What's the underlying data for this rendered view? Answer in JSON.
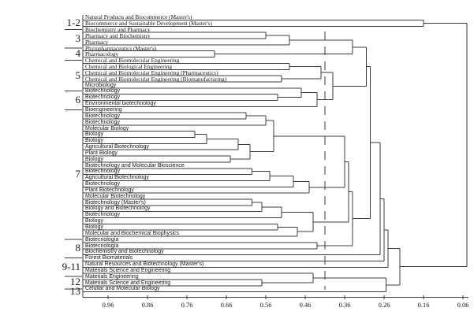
{
  "figure": {
    "description": "Hierarchical clustering dendrogram of university study programs",
    "background": "#ffffff",
    "line_color": "#3c3c3c",
    "text_color": "#161616"
  },
  "chart_data": {
    "type": "dendrogram",
    "orientation": "horizontal, leaves at left, merges toward right, similarity decreasing left-to-right",
    "axis": {
      "ticks": [
        "0.96",
        "0.86",
        "0.76",
        "0.66",
        "0.56",
        "0.46",
        "0.36",
        "0.26",
        "0.16",
        "0.06"
      ],
      "max": 0.96,
      "min": 0.06
    },
    "threshold_line": 0.41,
    "leaves": [
      "Natural Products and Biocommerce (Master's)",
      "Biocommerce and Sustainable Development (Master's)",
      "Biochemistry and Pharmacy",
      "Pharmacy and Biochemistry",
      "Pharmacy",
      "Phytopharmaceutics (Master's)",
      "Pharmacology",
      "Chemical and Biomolecular Engineering",
      "Chemical and Biological Engineering",
      "Chemical and Biomolecular Engineering (Pharmaceutics)",
      "Chemical and Biomolecular Engineering (Biomanufacturing)",
      "Microbiology",
      "Biotechnology",
      "Biotechnology",
      "Environmental biotechnology",
      "Bioengineering",
      "Biotechnology",
      "Biotechnology",
      "Molecular Biology",
      "Biology",
      "Biology",
      "Agricultural Biotechnology",
      "Plant Biology",
      "Biology",
      "Biotechnology and Molecular Bioscience",
      "Biotechnology",
      "Agricultural Biotechnology",
      "Biotechnology",
      "Plant Biotechnology",
      "Molecular Biotechnology",
      "Biotechnology (Master's)",
      "Biology and Biotechnology",
      "Biotechnology",
      "Biology",
      "Biology",
      "Molecular and Biochemical Biophysics",
      "Biotecnología",
      "Biotecnología",
      "Biochemistry and Biotechnology",
      "Forest Biomaterials",
      "Natural Resources and Biotechnology (Master's)",
      "Materials Science and Engineering",
      "Materials Engineering",
      "Materials Science and Engineering",
      "Celullar and Molecular Biology"
    ],
    "groups": [
      {
        "label": "1-2",
        "start": 1,
        "end": 2
      },
      {
        "label": "3",
        "start": 3,
        "end": 5
      },
      {
        "label": "4",
        "start": 6,
        "end": 7
      },
      {
        "label": "5",
        "start": 8,
        "end": 12
      },
      {
        "label": "6",
        "start": 13,
        "end": 15
      },
      {
        "label": "7",
        "start": 16,
        "end": 36
      },
      {
        "label": "8",
        "start": 37,
        "end": 39
      },
      {
        "label": "9-11",
        "start": 40,
        "end": 42
      },
      {
        "label": "12",
        "start": 43,
        "end": 44
      },
      {
        "label": "13",
        "start": 45,
        "end": 45
      }
    ],
    "merges": [
      [
        0,
        1,
        0.16
      ],
      [
        2,
        3,
        0.56
      ],
      [
        46,
        4,
        0.5
      ],
      [
        5,
        6,
        0.69
      ],
      [
        47,
        48,
        0.34
      ],
      [
        7,
        8,
        0.5
      ],
      [
        9,
        10,
        0.52
      ],
      [
        50,
        51,
        0.42
      ],
      [
        12,
        13,
        0.53
      ],
      [
        11,
        53,
        0.47
      ],
      [
        54,
        14,
        0.43
      ],
      [
        52,
        55,
        0.39
      ],
      [
        15,
        16,
        0.61
      ],
      [
        57,
        17,
        0.56
      ],
      [
        18,
        19,
        0.74
      ],
      [
        59,
        20,
        0.71
      ],
      [
        60,
        21,
        0.63
      ],
      [
        22,
        23,
        0.65
      ],
      [
        61,
        62,
        0.6
      ],
      [
        58,
        63,
        0.54
      ],
      [
        24,
        25,
        0.595
      ],
      [
        65,
        26,
        0.55
      ],
      [
        66,
        27,
        0.49
      ],
      [
        67,
        28,
        0.45
      ],
      [
        29,
        30,
        0.595
      ],
      [
        69,
        31,
        0.57
      ],
      [
        70,
        32,
        0.52
      ],
      [
        33,
        34,
        0.53
      ],
      [
        72,
        35,
        0.48
      ],
      [
        71,
        73,
        0.44
      ],
      [
        64,
        68,
        0.36
      ],
      [
        75,
        74,
        0.35
      ],
      [
        36,
        37,
        0.43
      ],
      [
        76,
        77,
        0.34
      ],
      [
        49,
        56,
        0.305
      ],
      [
        79,
        78,
        0.295
      ],
      [
        80,
        38,
        0.27
      ],
      [
        81,
        39,
        0.26
      ],
      [
        82,
        40,
        0.25
      ],
      [
        42,
        43,
        0.57
      ],
      [
        41,
        84,
        0.44
      ],
      [
        85,
        44,
        0.255
      ],
      [
        83,
        86,
        0.22
      ],
      [
        45,
        87,
        0.05
      ]
    ]
  }
}
